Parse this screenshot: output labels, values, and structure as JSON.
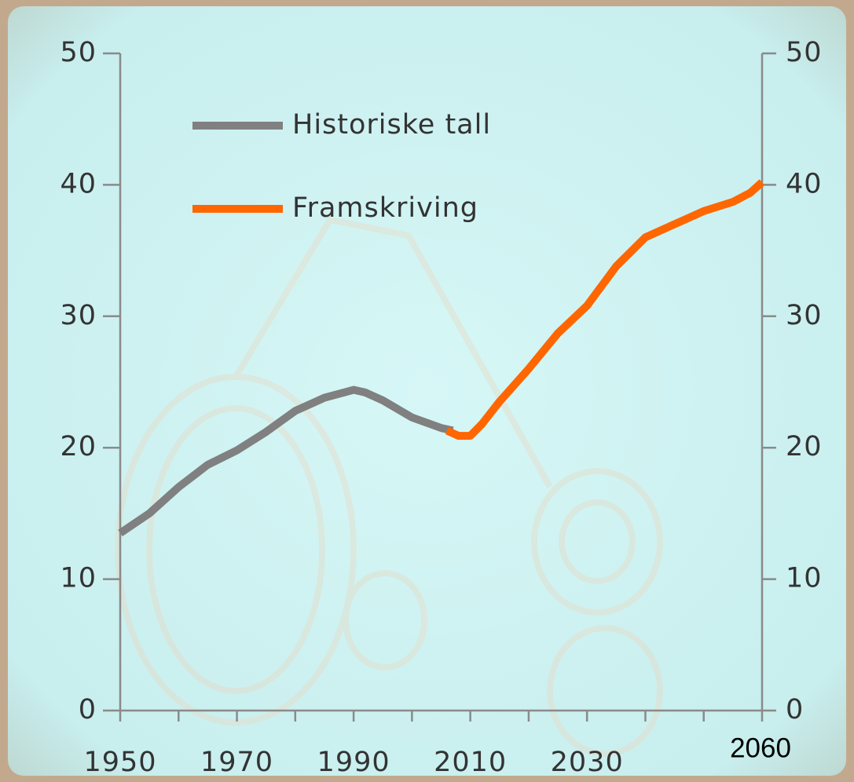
{
  "chart_data": {
    "type": "line",
    "x_label_special": "2060",
    "xlim": [
      1950,
      2060
    ],
    "xticks": [
      1950,
      1970,
      1990,
      2010,
      2030
    ],
    "xminorticks": [
      1960,
      1980,
      2000,
      2020,
      2040,
      2050,
      2060
    ],
    "ylim": [
      0,
      50
    ],
    "yticks": [
      0,
      10,
      20,
      30,
      40,
      50
    ],
    "y2lim": [
      0,
      50
    ],
    "y2ticks": [
      0,
      10,
      20,
      30,
      40,
      50
    ],
    "legend": "upper left",
    "series": [
      {
        "name": "Historiske tall",
        "color": "#808080",
        "x": [
          1950,
          1955,
          1960,
          1965,
          1970,
          1975,
          1980,
          1985,
          1990,
          1992,
          1995,
          2000,
          2005,
          2007
        ],
        "values": [
          13.5,
          15,
          17,
          18.7,
          19.8,
          21.2,
          22.8,
          23.8,
          24.4,
          24.2,
          23.6,
          22.3,
          21.5,
          21.3
        ]
      },
      {
        "name": "Framskriving",
        "color": "#ff6600",
        "x": [
          2006,
          2008,
          2010,
          2012,
          2015,
          2020,
          2025,
          2030,
          2035,
          2040,
          2045,
          2050,
          2055,
          2058,
          2060
        ],
        "values": [
          21.3,
          20.9,
          20.9,
          21.8,
          23.5,
          26,
          28.7,
          30.8,
          33.8,
          36,
          37,
          38,
          38.7,
          39.4,
          40.2
        ]
      }
    ]
  }
}
